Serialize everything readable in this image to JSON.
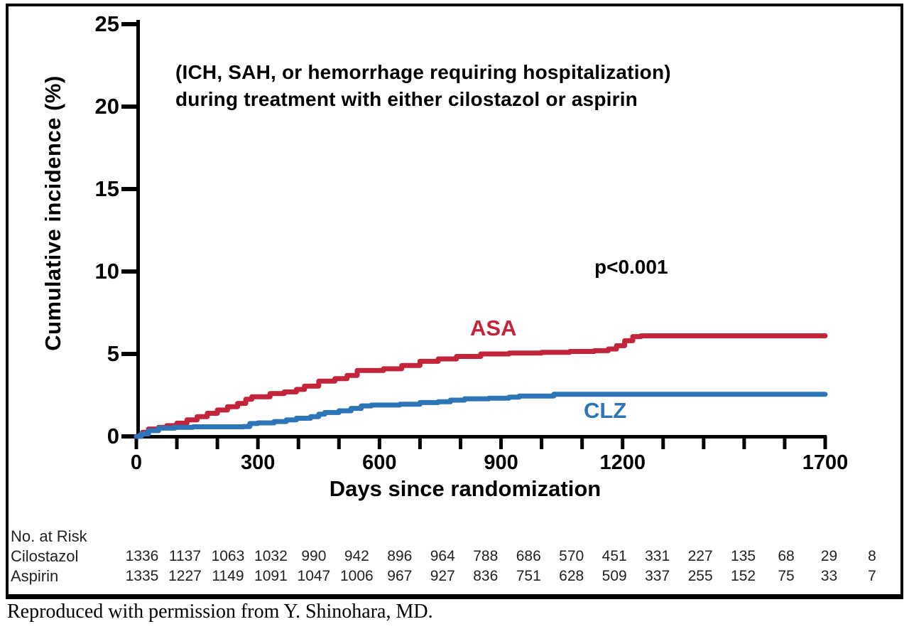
{
  "figure": {
    "annotation_line1": "(ICH, SAH, or hemorrhage requiring hospitalization)",
    "annotation_line2": "during treatment with either cilostazol or aspirin",
    "p_value": "p<0.001",
    "caption": "Reproduced with permission from Y. Shinohara, MD."
  },
  "chart_data": {
    "type": "line",
    "subtype": "step",
    "title": "",
    "xlabel": "Days since randomization",
    "ylabel": "Cumulative incidence (%)",
    "xlim": [
      0,
      1700
    ],
    "ylim": [
      0,
      25
    ],
    "x_major_ticks": [
      0,
      300,
      600,
      900,
      1200,
      1700
    ],
    "x_minor_tick_step": 100,
    "y_ticks": [
      0,
      5,
      10,
      15,
      20,
      25
    ],
    "grid": false,
    "legend_position": "inline-labels",
    "axis_color": "#000000",
    "series": [
      {
        "name": "ASA",
        "color": "#c2253a",
        "points": [
          [
            0,
            0
          ],
          [
            8,
            0.08
          ],
          [
            15,
            0.25
          ],
          [
            30,
            0.45
          ],
          [
            55,
            0.55
          ],
          [
            75,
            0.65
          ],
          [
            100,
            0.8
          ],
          [
            125,
            1.0
          ],
          [
            150,
            1.2
          ],
          [
            175,
            1.4
          ],
          [
            200,
            1.6
          ],
          [
            225,
            1.8
          ],
          [
            250,
            2.0
          ],
          [
            270,
            2.25
          ],
          [
            285,
            2.4
          ],
          [
            330,
            2.6
          ],
          [
            365,
            2.7
          ],
          [
            395,
            2.85
          ],
          [
            415,
            3.05
          ],
          [
            450,
            3.35
          ],
          [
            490,
            3.5
          ],
          [
            520,
            3.7
          ],
          [
            545,
            4.0
          ],
          [
            610,
            4.1
          ],
          [
            655,
            4.3
          ],
          [
            700,
            4.55
          ],
          [
            745,
            4.7
          ],
          [
            790,
            4.85
          ],
          [
            850,
            5.0
          ],
          [
            920,
            5.05
          ],
          [
            1000,
            5.1
          ],
          [
            1070,
            5.15
          ],
          [
            1130,
            5.2
          ],
          [
            1165,
            5.3
          ],
          [
            1185,
            5.5
          ],
          [
            1205,
            5.8
          ],
          [
            1225,
            6.05
          ],
          [
            1245,
            6.1
          ],
          [
            1700,
            6.1
          ]
        ]
      },
      {
        "name": "CLZ",
        "color": "#2e75b8",
        "points": [
          [
            0,
            0
          ],
          [
            12,
            0.15
          ],
          [
            30,
            0.35
          ],
          [
            55,
            0.5
          ],
          [
            95,
            0.55
          ],
          [
            140,
            0.58
          ],
          [
            265,
            0.6
          ],
          [
            280,
            0.78
          ],
          [
            300,
            0.82
          ],
          [
            340,
            0.9
          ],
          [
            370,
            1.0
          ],
          [
            395,
            1.1
          ],
          [
            430,
            1.2
          ],
          [
            450,
            1.35
          ],
          [
            465,
            1.45
          ],
          [
            500,
            1.55
          ],
          [
            530,
            1.7
          ],
          [
            555,
            1.85
          ],
          [
            580,
            1.9
          ],
          [
            650,
            1.95
          ],
          [
            700,
            2.05
          ],
          [
            745,
            2.1
          ],
          [
            775,
            2.2
          ],
          [
            810,
            2.28
          ],
          [
            870,
            2.32
          ],
          [
            920,
            2.38
          ],
          [
            945,
            2.45
          ],
          [
            1030,
            2.55
          ],
          [
            1700,
            2.55
          ]
        ]
      }
    ]
  },
  "risk_table": {
    "title": "No. at Risk",
    "rows": [
      {
        "label": "Cilostazol",
        "values": [
          "1336",
          "1137",
          "1063",
          "1032",
          "990",
          "942",
          "896",
          "964",
          "788",
          "686",
          "570",
          "451",
          "331",
          "227",
          "135",
          "68",
          "29",
          "8"
        ]
      },
      {
        "label": "Aspirin",
        "values": [
          "1335",
          "1227",
          "1149",
          "1091",
          "1047",
          "1006",
          "967",
          "927",
          "836",
          "751",
          "628",
          "509",
          "337",
          "255",
          "152",
          "75",
          "33",
          "7"
        ]
      }
    ]
  }
}
